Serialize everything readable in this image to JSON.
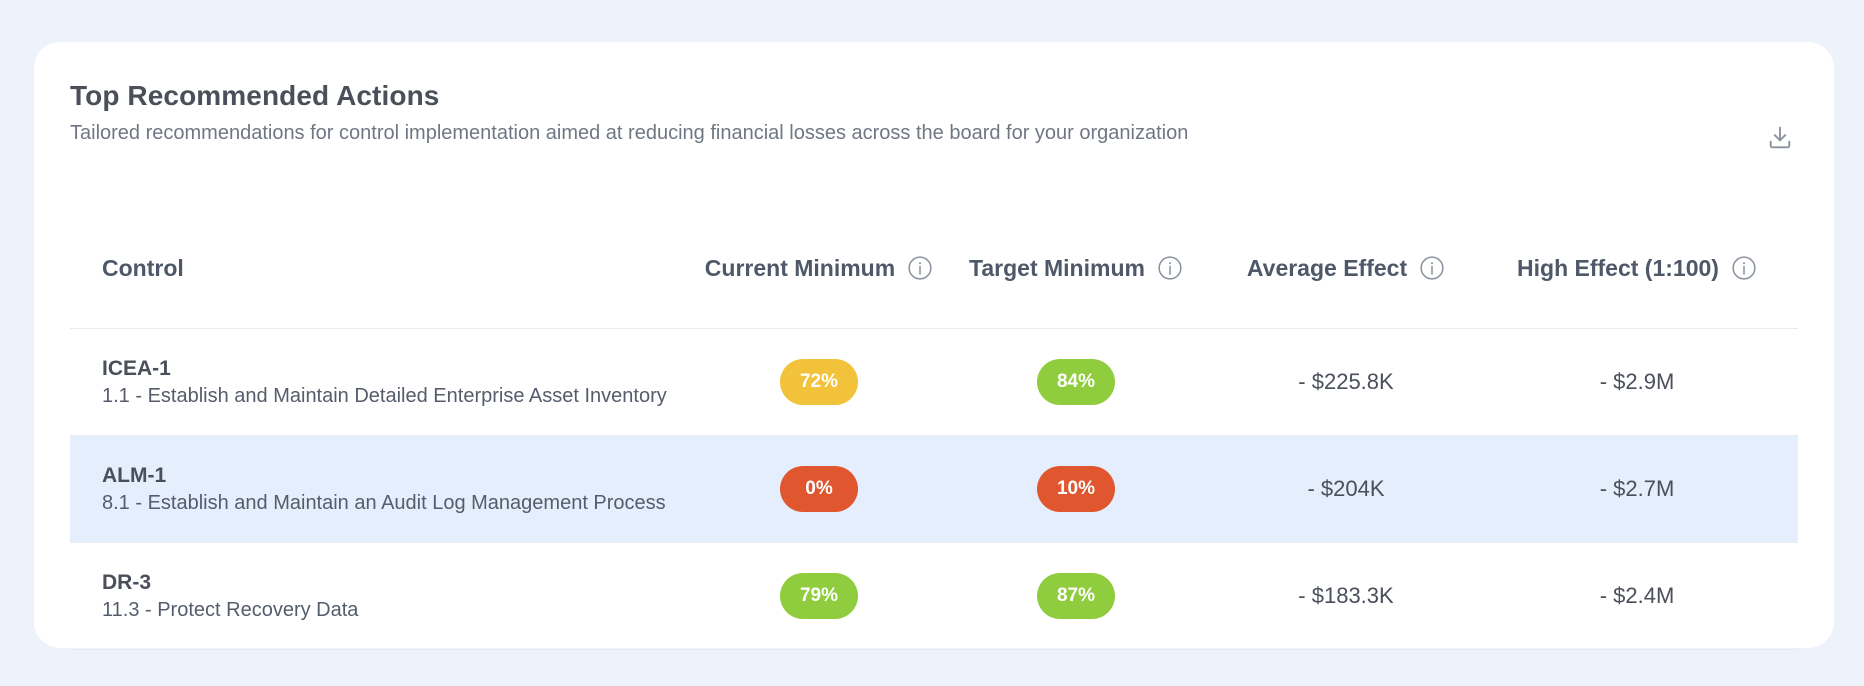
{
  "header": {
    "title": "Top Recommended Actions",
    "subtitle": "Tailored recommendations for control implementation aimed at reducing financial losses across the board for your organization",
    "download_icon": "download-icon"
  },
  "table": {
    "columns": [
      {
        "label": "Control",
        "info": false
      },
      {
        "label": "Current Minimum",
        "info": true
      },
      {
        "label": "Target Minimum",
        "info": true
      },
      {
        "label": "Average Effect",
        "info": true
      },
      {
        "label": "High Effect (1:100)",
        "info": true
      }
    ],
    "rows": [
      {
        "id": "ICEA-1",
        "description": "1.1 - Establish and Maintain Detailed Enterprise Asset Inventory",
        "current_min": "72%",
        "current_color": "#f2c23a",
        "target_min": "84%",
        "target_color": "#8fcd3e",
        "avg_effect": "- $225.8K",
        "high_effect": "- $2.9M",
        "highlighted": false
      },
      {
        "id": "ALM-1",
        "description": "8.1 - Establish and Maintain an Audit Log Management Process",
        "current_min": "0%",
        "current_color": "#e0572f",
        "target_min": "10%",
        "target_color": "#e0572f",
        "avg_effect": "- $204K",
        "high_effect": "- $2.7M",
        "highlighted": true
      },
      {
        "id": "DR-3",
        "description": "11.3 - Protect Recovery Data",
        "current_min": "79%",
        "current_color": "#8fcd3e",
        "target_min": "87%",
        "target_color": "#8fcd3e",
        "avg_effect": "- $183.3K",
        "high_effect": "- $2.4M",
        "highlighted": false
      }
    ]
  },
  "colors": {
    "page_background": "#edf2fb",
    "card_background": "#ffffff",
    "highlight_row": "#e4eefc"
  }
}
